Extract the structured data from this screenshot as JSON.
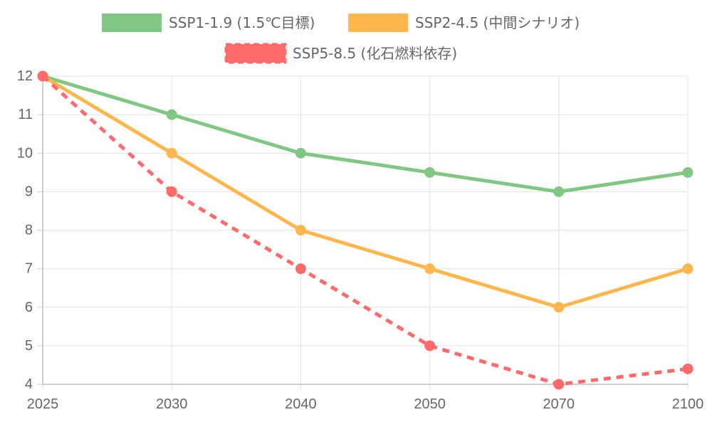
{
  "chart_data": {
    "type": "line",
    "categories": [
      "2025",
      "2030",
      "2040",
      "2050",
      "2070",
      "2100"
    ],
    "series": [
      {
        "name": "SSP1-1.9 (1.5℃目標)",
        "values": [
          12,
          11,
          10,
          9.5,
          9,
          9.5
        ],
        "color": "#81c784",
        "dashed": false
      },
      {
        "name": "SSP2-4.5 (中間シナリオ)",
        "values": [
          12,
          10,
          8,
          7,
          6,
          7
        ],
        "color": "#ffb74d",
        "dashed": false
      },
      {
        "name": "SSP5-8.5 (化石燃料依存)",
        "values": [
          12,
          9,
          7,
          5,
          4,
          4.4
        ],
        "color": "#ff6b6b",
        "dashed": true
      }
    ],
    "ylim": [
      4,
      12
    ],
    "yticks": [
      4,
      5,
      6,
      7,
      8,
      9,
      10,
      11,
      12
    ],
    "grid": true,
    "legend_position": "top"
  }
}
